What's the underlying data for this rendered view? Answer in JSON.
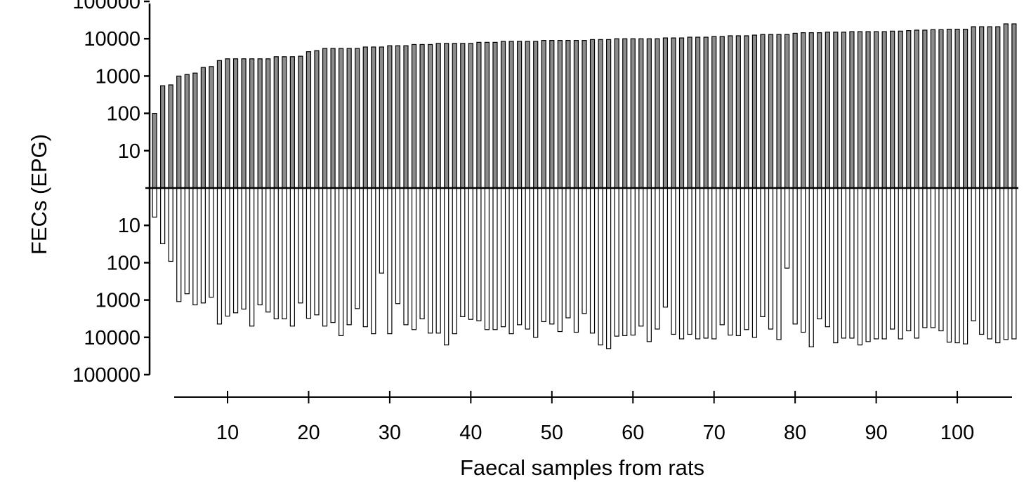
{
  "chart_data": {
    "type": "bar",
    "subtype": "mirrored-log-bar",
    "xlabel": "Faecal samples from rats",
    "ylabel": "FECs (EPG)",
    "yscale": "log",
    "ylim_top": [
      1,
      100000
    ],
    "ylim_bottom": [
      1,
      100000
    ],
    "y_tick_labels_top": [
      "100000",
      "10000",
      "1000",
      "100",
      "10"
    ],
    "y_tick_labels_bottom": [
      "10",
      "100",
      "1000",
      "10000",
      "100000"
    ],
    "x_ticks": [
      10,
      20,
      30,
      40,
      50,
      60,
      70,
      80,
      90,
      100
    ],
    "xlim": [
      1,
      107
    ],
    "grid": false,
    "colors": {
      "upper_fill": "#8c8c8c",
      "lower_fill": "#ffffff",
      "outline": "#000000"
    },
    "series": [
      {
        "position": "upper",
        "values": [
          100,
          550,
          580,
          1000,
          1100,
          1200,
          1700,
          1800,
          2600,
          2900,
          2900,
          2900,
          2900,
          2900,
          2900,
          3300,
          3300,
          3300,
          3400,
          4500,
          4800,
          5500,
          5500,
          5500,
          5500,
          5500,
          6000,
          6000,
          6000,
          6500,
          6500,
          6500,
          7000,
          7000,
          7000,
          7500,
          7500,
          7500,
          7500,
          7500,
          8000,
          8000,
          8000,
          8500,
          8500,
          8500,
          8500,
          8500,
          9000,
          9000,
          9000,
          9000,
          9000,
          9000,
          9500,
          9500,
          9500,
          10000,
          10000,
          10000,
          10000,
          10000,
          10000,
          10500,
          10500,
          10500,
          11000,
          11000,
          11000,
          11500,
          11500,
          12000,
          12000,
          12000,
          12500,
          13000,
          13000,
          13000,
          13000,
          14000,
          14500,
          14500,
          14500,
          15000,
          15000,
          15000,
          15500,
          15500,
          15500,
          15500,
          15500,
          16000,
          16000,
          16500,
          17000,
          17000,
          17500,
          17500,
          18000,
          18000,
          18000,
          21000,
          21000,
          21000,
          21000,
          25000,
          25000
        ]
      },
      {
        "position": "lower",
        "values": [
          6,
          31,
          92,
          1100,
          680,
          1350,
          1200,
          840,
          4400,
          2700,
          2200,
          1750,
          5000,
          1350,
          2100,
          3200,
          3200,
          5000,
          1200,
          3100,
          2500,
          5000,
          4000,
          9000,
          4600,
          1700,
          5200,
          8000,
          190,
          8000,
          1250,
          4600,
          6200,
          3200,
          7700,
          7700,
          16000,
          8000,
          2800,
          3300,
          3600,
          6200,
          6200,
          5200,
          8000,
          4600,
          6000,
          10000,
          3800,
          4400,
          7000,
          3000,
          7300,
          2300,
          7700,
          16000,
          20000,
          9300,
          9000,
          8700,
          5000,
          13000,
          6000,
          1550,
          8300,
          11000,
          8300,
          11000,
          10500,
          11000,
          4600,
          8700,
          9000,
          6200,
          10000,
          2800,
          6000,
          11500,
          140,
          4400,
          7300,
          18000,
          3200,
          5200,
          14000,
          10500,
          10500,
          16000,
          13000,
          11000,
          11000,
          6000,
          11000,
          6700,
          10500,
          5500,
          5500,
          6700,
          13500,
          14000,
          15000,
          3600,
          8300,
          11000,
          14000,
          11500,
          11000
        ]
      }
    ]
  }
}
